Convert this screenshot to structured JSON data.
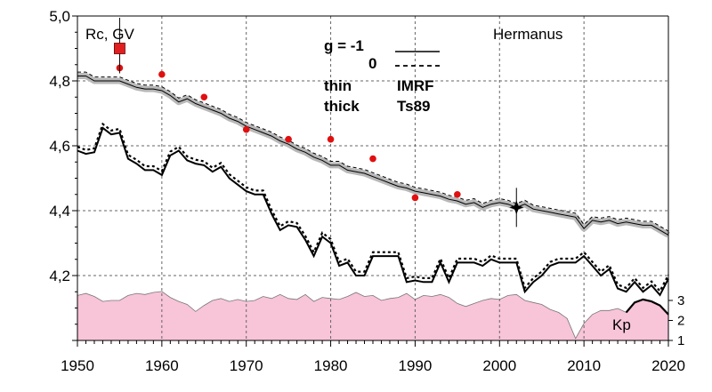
{
  "chart_data": {
    "type": "line",
    "station": "Hermanus",
    "ylabel": "Rc, GV",
    "xlim": [
      1950,
      2020
    ],
    "ylim": [
      4.0,
      5.0
    ],
    "x_ticks": [
      "1950",
      "1960",
      "1970",
      "1980",
      "1990",
      "2000",
      "2010",
      "2020"
    ],
    "y_ticks": [
      "4,2",
      "4,4",
      "4,6",
      "4,8",
      "5,0"
    ],
    "legend": {
      "g_neg1_label": "g  = -1",
      "g_0_label": "0",
      "thin_label": "thin",
      "thick_label": "thick",
      "imrf_label": "IMRF",
      "ts89_label": "Ts89"
    },
    "series": [
      {
        "style": "thin line with grey band",
        "x": [
          1950,
          1951,
          1952,
          1953,
          1954,
          1955,
          1956,
          1957,
          1958,
          1959,
          1960,
          1961,
          1962,
          1963,
          1964,
          1965,
          1966,
          1967,
          1968,
          1969,
          1970,
          1971,
          1972,
          1973,
          1974,
          1975,
          1976,
          1977,
          1978,
          1979,
          1980,
          1981,
          1982,
          1983,
          1984,
          1985,
          1986,
          1987,
          1988,
          1989,
          1990,
          1991,
          1992,
          1993,
          1994,
          1995,
          1996,
          1997,
          1998,
          1999,
          2000,
          2001,
          2002,
          2003,
          2004,
          2005,
          2006,
          2007,
          2008,
          2009,
          2010,
          2011,
          2012,
          2013,
          2014,
          2015,
          2016,
          2017,
          2018,
          2019,
          2020
        ],
        "y": [
          4.815,
          4.815,
          4.8,
          4.8,
          4.8,
          4.8,
          4.79,
          4.78,
          4.775,
          4.775,
          4.77,
          4.755,
          4.735,
          4.745,
          4.73,
          4.72,
          4.71,
          4.7,
          4.685,
          4.675,
          4.66,
          4.65,
          4.64,
          4.63,
          4.615,
          4.605,
          4.59,
          4.58,
          4.565,
          4.555,
          4.54,
          4.54,
          4.525,
          4.52,
          4.515,
          4.505,
          4.495,
          4.485,
          4.475,
          4.47,
          4.46,
          4.455,
          4.45,
          4.445,
          4.435,
          4.43,
          4.42,
          4.425,
          4.41,
          4.42,
          4.425,
          4.42,
          4.41,
          4.42,
          4.405,
          4.4,
          4.395,
          4.39,
          4.385,
          4.38,
          4.345,
          4.37,
          4.365,
          4.37,
          4.36,
          4.365,
          4.36,
          4.355,
          4.355,
          4.34,
          4.325
        ]
      },
      {
        "style": "thick solid line",
        "x": [
          1950,
          1951,
          1952,
          1953,
          1954,
          1955,
          1956,
          1957,
          1958,
          1959,
          1960,
          1961,
          1962,
          1963,
          1964,
          1965,
          1966,
          1967,
          1968,
          1969,
          1970,
          1971,
          1972,
          1973,
          1974,
          1975,
          1976,
          1977,
          1978,
          1979,
          1980,
          1981,
          1982,
          1983,
          1984,
          1985,
          1986,
          1987,
          1988,
          1989,
          1990,
          1991,
          1992,
          1993,
          1994,
          1995,
          1996,
          1997,
          1998,
          1999,
          2000,
          2001,
          2002,
          2003,
          2004,
          2005,
          2006,
          2007,
          2008,
          2009,
          2010,
          2011,
          2012,
          2013,
          2014,
          2015,
          2016,
          2017,
          2018,
          2019,
          2020
        ],
        "y": [
          4.585,
          4.575,
          4.58,
          4.655,
          4.635,
          4.64,
          4.56,
          4.545,
          4.525,
          4.525,
          4.51,
          4.57,
          4.585,
          4.555,
          4.545,
          4.54,
          4.52,
          4.535,
          4.5,
          4.48,
          4.46,
          4.45,
          4.45,
          4.39,
          4.34,
          4.355,
          4.35,
          4.31,
          4.26,
          4.32,
          4.3,
          4.23,
          4.24,
          4.2,
          4.2,
          4.26,
          4.26,
          4.26,
          4.26,
          4.18,
          4.185,
          4.18,
          4.18,
          4.24,
          4.18,
          4.24,
          4.24,
          4.24,
          4.23,
          4.25,
          4.24,
          4.24,
          4.24,
          4.15,
          4.18,
          4.2,
          4.23,
          4.24,
          4.24,
          4.24,
          4.26,
          4.23,
          4.2,
          4.22,
          4.16,
          4.15,
          4.18,
          4.15,
          4.17,
          4.14,
          4.19
        ]
      }
    ],
    "measured_points": {
      "x": [
        1955,
        1960,
        1965,
        1970,
        1975,
        1980,
        1985,
        1990,
        1995
      ],
      "y": [
        4.84,
        4.82,
        4.75,
        4.65,
        4.62,
        4.62,
        4.56,
        4.44,
        4.45
      ]
    },
    "markers": [
      {
        "shape": "square",
        "x": 1955,
        "y": 4.9
      },
      {
        "shape": "star",
        "x": 2002,
        "y": 4.41
      }
    ],
    "kp": {
      "label": "Kp",
      "ticks": [
        "1",
        "2",
        "3"
      ],
      "ylim": [
        1,
        3.8
      ],
      "x": [
        1950,
        1951,
        1952,
        1953,
        1954,
        1955,
        1956,
        1957,
        1958,
        1959,
        1960,
        1961,
        1962,
        1963,
        1964,
        1965,
        1966,
        1967,
        1968,
        1969,
        1970,
        1971,
        1972,
        1973,
        1974,
        1975,
        1976,
        1977,
        1978,
        1979,
        1980,
        1981,
        1982,
        1983,
        1984,
        1985,
        1986,
        1987,
        1988,
        1989,
        1990,
        1991,
        1992,
        1993,
        1994,
        1995,
        1996,
        1997,
        1998,
        1999,
        2000,
        2001,
        2002,
        2003,
        2004,
        2005,
        2006,
        2007,
        2008,
        2009,
        2010,
        2011,
        2012,
        2013,
        2014,
        2015,
        2016,
        2017,
        2018,
        2019,
        2020
      ],
      "y": [
        3.25,
        3.35,
        3.2,
        2.95,
        3.0,
        3.0,
        3.25,
        3.35,
        3.3,
        3.4,
        3.45,
        3.15,
        2.95,
        2.8,
        2.45,
        2.75,
        3.0,
        3.1,
        2.95,
        3.05,
        2.95,
        3.0,
        3.2,
        3.1,
        3.3,
        3.1,
        3.05,
        3.3,
        2.95,
        3.15,
        3.1,
        3.05,
        3.2,
        3.4,
        3.2,
        3.25,
        3.0,
        3.1,
        3.15,
        3.35,
        3.05,
        3.25,
        3.2,
        3.3,
        3.15,
        2.85,
        2.7,
        2.85,
        3.0,
        3.1,
        3.05,
        3.25,
        3.3,
        3.0,
        2.9,
        2.8,
        2.55,
        2.4,
        2.1,
        1.1,
        1.85,
        2.3,
        2.5,
        2.5,
        2.6,
        2.4,
        2.9,
        3.05,
        2.95,
        2.75,
        2.3
      ]
    }
  }
}
